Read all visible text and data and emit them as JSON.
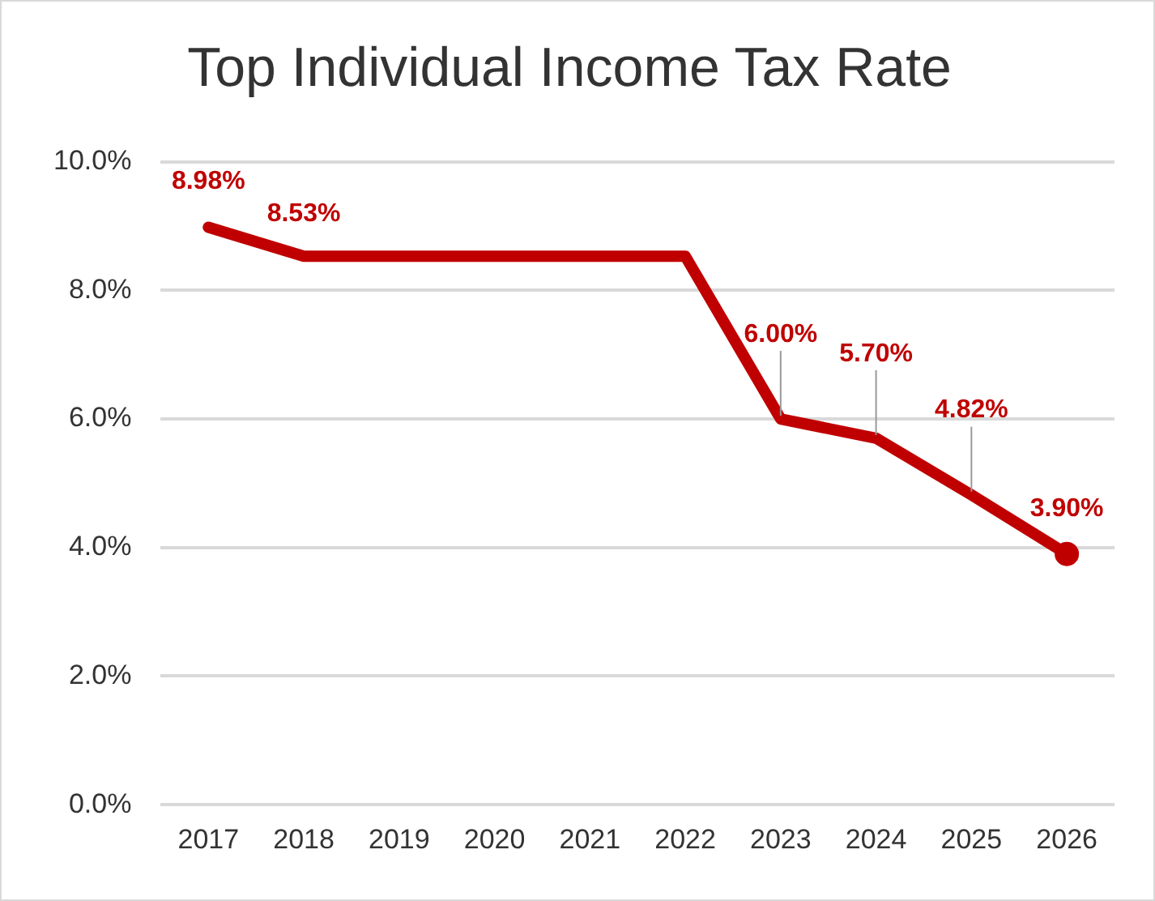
{
  "chart_data": {
    "type": "line",
    "title": "Top Individual Income Tax Rate",
    "categories": [
      "2017",
      "2018",
      "2019",
      "2020",
      "2021",
      "2022",
      "2023",
      "2024",
      "2025",
      "2026"
    ],
    "series": [
      {
        "color": "#c00000",
        "values": [
          8.98,
          8.53,
          8.53,
          8.53,
          8.53,
          8.53,
          6.0,
          5.7,
          4.82,
          3.9
        ],
        "value_labels": [
          "8.98%",
          "8.53%",
          null,
          null,
          null,
          null,
          "6.00%",
          "5.70%",
          "4.82%",
          null
        ],
        "marker": "none"
      },
      {
        "type": "scatter",
        "color": "#c00000",
        "values": [
          null,
          null,
          null,
          null,
          null,
          null,
          null,
          null,
          null,
          3.9
        ],
        "value_labels": [
          null,
          null,
          null,
          null,
          null,
          null,
          null,
          null,
          null,
          "3.90%"
        ],
        "marker": "circle"
      }
    ],
    "ylim": [
      0,
      10
    ],
    "yticks": [
      {
        "value": 0,
        "label": "0.0%"
      },
      {
        "value": 2,
        "label": "2.0%"
      },
      {
        "value": 4,
        "label": "4.0%"
      },
      {
        "value": 6,
        "label": "6.0%"
      },
      {
        "value": 8,
        "label": "8.0%"
      },
      {
        "value": 10,
        "label": "10.0%"
      }
    ],
    "grid": "y",
    "legend": false
  }
}
